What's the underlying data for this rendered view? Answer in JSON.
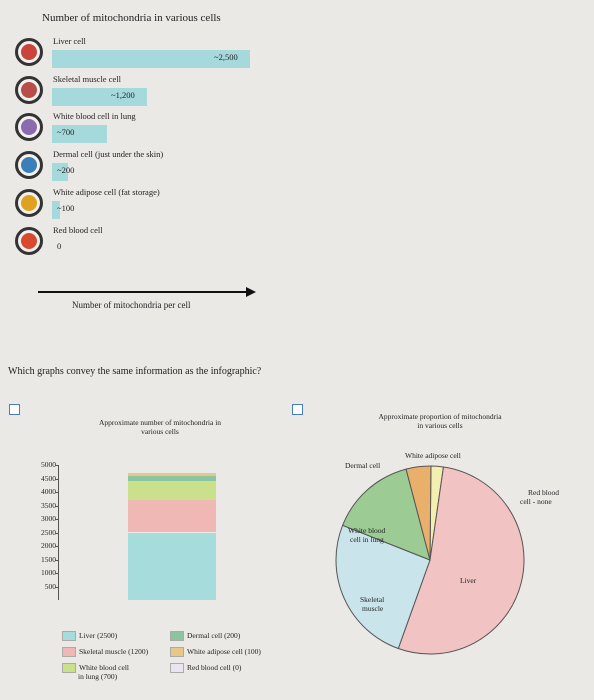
{
  "infographic": {
    "title": "Number of mitochondria in various cells",
    "axis_caption": "Number of mitochondria per cell",
    "max_value": 2500,
    "rows": [
      {
        "label": "Liver cell",
        "value": 2500,
        "value_text": "~2,500",
        "icon": "liver-cell-icon",
        "icon_color": "#c9443a"
      },
      {
        "label": "Skeletal muscle cell",
        "value": 1200,
        "value_text": "~1,200",
        "icon": "muscle-cell-icon",
        "icon_color": "#b84e4a"
      },
      {
        "label": "White blood cell in lung",
        "value": 700,
        "value_text": "~700",
        "icon": "white-blood-cell-icon",
        "icon_color": "#8a6bb0"
      },
      {
        "label": "Dermal cell (just under the skin)",
        "value": 200,
        "value_text": "~200",
        "icon": "dermal-cell-icon",
        "icon_color": "#3b7fb8"
      },
      {
        "label": "White adipose cell (fat storage)",
        "value": 100,
        "value_text": "~100",
        "icon": "adipose-cell-icon",
        "icon_color": "#e0a21e"
      },
      {
        "label": "Red blood cell",
        "value": 0,
        "value_text": "0",
        "icon": "red-blood-cell-icon",
        "icon_color": "#d84a2e"
      }
    ]
  },
  "question": "Which graphs convey the same information as the infographic?",
  "chart_data": [
    {
      "type": "bar",
      "title": "Approximate number of mitochondria in various cells",
      "stacked": true,
      "ylim": [
        0,
        5000
      ],
      "yticks": [
        "5000",
        "4500",
        "4000",
        "3500",
        "3000",
        "2500",
        "2000",
        "1500",
        "1000",
        "500"
      ],
      "series": [
        {
          "name": "Liver (2500)",
          "value": 2500,
          "color": "#a6dcdb"
        },
        {
          "name": "Skeletal muscle (1200)",
          "value": 1200,
          "color": "#f0b8b4"
        },
        {
          "name": "White blood cell in lung (700)",
          "value": 700,
          "color": "#cbe08a"
        },
        {
          "name": "Dermal cell (200)",
          "value": 200,
          "color": "#8cc4a0"
        },
        {
          "name": "White adipose cell (100)",
          "value": 100,
          "color": "#e7c88a"
        },
        {
          "name": "Red blood cell (0)",
          "value": 0,
          "color": "#e8e4f0"
        }
      ],
      "legend_labels": [
        "Liver (2500)",
        "Skeletal muscle (1200)",
        "White blood cell",
        "in lung (700)",
        "Dermal cell (200)",
        "White adipose cell (100)",
        "Red blood cell (0)"
      ]
    },
    {
      "type": "pie",
      "title": "Approximate proportion of mitochondria in various cells",
      "slices": [
        {
          "name": "Liver",
          "value": 2500,
          "color": "#f2c3c3"
        },
        {
          "name": "Skeletal muscle",
          "value": 1200,
          "color": "#c9e4ea"
        },
        {
          "name": "White blood cell in lung",
          "value": 700,
          "color": "#9ccb94"
        },
        {
          "name": "Dermal cell",
          "value": 200,
          "color": "#e8b06a"
        },
        {
          "name": "White adipose cell",
          "value": 100,
          "color": "#f3efb0"
        },
        {
          "name": "Red blood cell - none",
          "value": 0,
          "color": "#ffffff"
        }
      ],
      "labels": {
        "dermal": "Dermal cell",
        "adipose": "White adipose cell",
        "red": "Red blood",
        "red2": "cell - none",
        "wbc": "White blood",
        "wbc2": "cell in lung",
        "muscle": "Skeletal",
        "muscle2": "muscle",
        "liver": "Liver"
      }
    }
  ]
}
